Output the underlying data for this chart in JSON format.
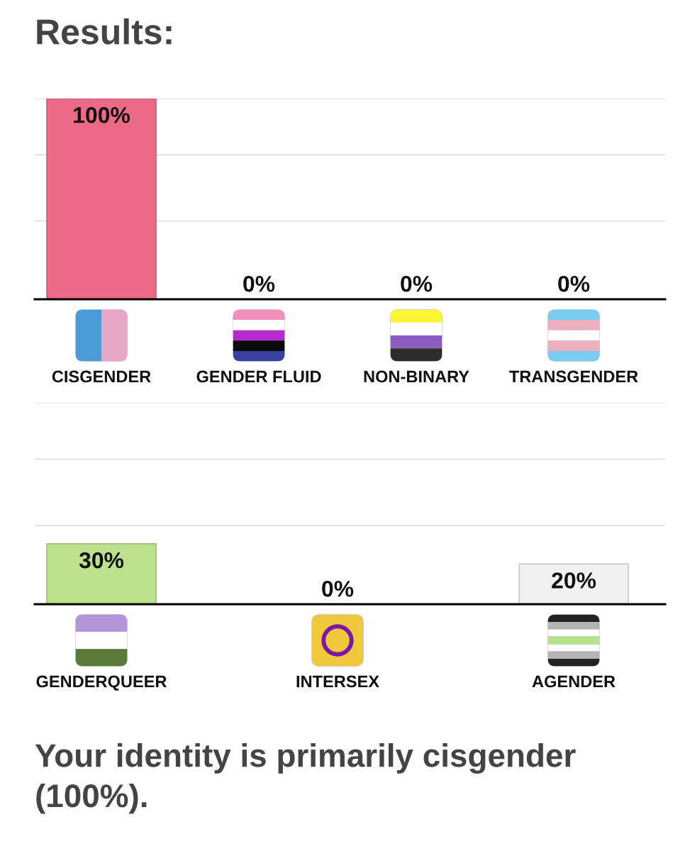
{
  "chart_data": [
    {
      "type": "bar",
      "title": "Results:",
      "categories": [
        "CISGENDER",
        "GENDER FLUID",
        "NON-BINARY",
        "TRANSGENDER"
      ],
      "values": [
        100,
        0,
        0,
        0
      ],
      "colors": [
        "#ec6a86",
        null,
        null,
        null
      ],
      "value_labels": [
        "100%",
        "0%",
        "0%",
        "0%"
      ],
      "ylim": [
        0,
        100
      ],
      "yticks": [
        {
          "value": 39,
          "label": null
        },
        {
          "value": 72,
          "label": null
        },
        {
          "value": 100,
          "label": null
        }
      ],
      "grid": "y",
      "tick_labels": "x"
    },
    {
      "type": "bar",
      "categories": [
        "GENDERQUEER",
        "INTERSEX",
        "AGENDER"
      ],
      "values": [
        30,
        0,
        20
      ],
      "colors": [
        "#bde28e",
        null,
        "#f1f1f1"
      ],
      "value_labels": [
        "30%",
        "0%",
        "20%"
      ],
      "ylim": [
        0,
        100
      ],
      "yticks": [
        {
          "value": 39,
          "label": null
        },
        {
          "value": 72,
          "label": null
        },
        {
          "value": 100,
          "label": null
        }
      ],
      "grid": "y",
      "tick_labels": "x",
      "annotations": [
        "Your identity is primarily cisgender (100%)."
      ]
    }
  ]
}
